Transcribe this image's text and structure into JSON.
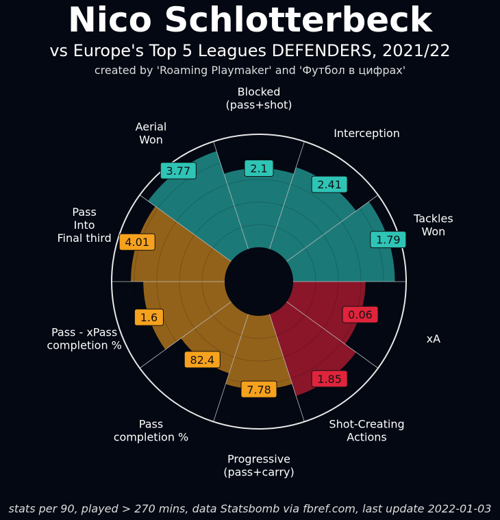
{
  "title": "Nico Schlotterbeck",
  "subtitle": "vs Europe's Top 5 Leagues DEFENDERS, 2021/22",
  "credit": "created by 'Roaming Playmaker' and 'Футбол в цифрах'",
  "footer": "stats per 90, played > 270 mins, data Statsbomb via fbref.com, last update 2022-01-03",
  "colors": {
    "background": "#030812",
    "defending_bar": "#1b7a78",
    "defending_box": "#2ec4b6",
    "passing_bar": "#93621a",
    "passing_box": "#f6a21e",
    "attacking_bar": "#8b1629",
    "attacking_box": "#e0243c"
  },
  "chart_data": {
    "type": "pie-polar-bar",
    "percentile_range": [
      0,
      100
    ],
    "slices": [
      {
        "label": "Tackles\nWon",
        "value": "1.79",
        "percentile": 90,
        "group": "defending"
      },
      {
        "label": "Interception",
        "value": "2.41",
        "percentile": 76,
        "group": "defending"
      },
      {
        "label": "Blocked\n(pass+shot)",
        "value": "2.1",
        "percentile": 70,
        "group": "defending"
      },
      {
        "label": "Aerial\nWon",
        "value": "3.77",
        "percentile": 91,
        "group": "defending"
      },
      {
        "label": "Pass\nInto\nFinal third",
        "value": "4.01",
        "percentile": 83,
        "group": "passing"
      },
      {
        "label": "Pass - xPass\ncompletion %",
        "value": "1.6",
        "percentile": 72,
        "group": "passing"
      },
      {
        "label": "Pass\ncompletion %",
        "value": "82.4",
        "percentile": 55,
        "group": "passing"
      },
      {
        "label": "Progressive\n(pass+carry)",
        "value": "7.78",
        "percentile": 65,
        "group": "passing"
      },
      {
        "label": "Shot-Creating\nActions",
        "value": "1.85",
        "percentile": 76,
        "group": "attacking"
      },
      {
        "label": "xA",
        "value": "0.06",
        "percentile": 64,
        "group": "attacking"
      }
    ]
  }
}
